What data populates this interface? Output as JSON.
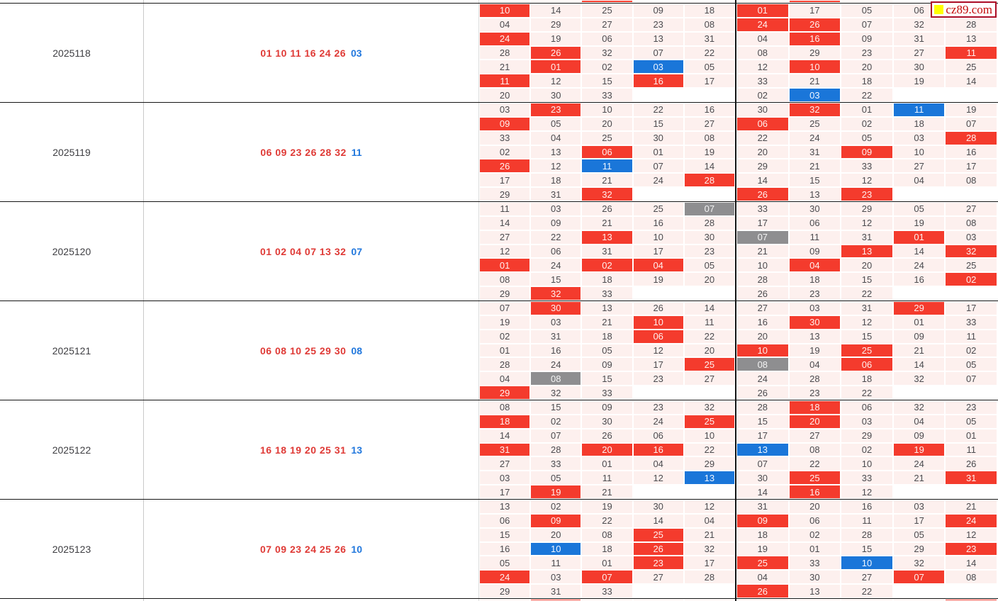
{
  "colors": {
    "red": "#f43b2d",
    "blue": "#1a76d9",
    "gray": "#8e8e90",
    "cell_bg": "#fdf0ee",
    "win_red": "#df3a36",
    "win_blue": "#2278dd"
  },
  "watermark": {
    "text": "cz89.com"
  },
  "slivers": {
    "top": "--ree-r-ee",
    "bottom": "-r-------r"
  },
  "periods": [
    {
      "id": "2025118",
      "reds": "01 10 11 16 24 26",
      "blue": "03",
      "left": {
        "values": [
          [
            "10",
            "14",
            "25",
            "09",
            "18"
          ],
          [
            "04",
            "29",
            "27",
            "23",
            "08"
          ],
          [
            "24",
            "19",
            "06",
            "13",
            "31"
          ],
          [
            "28",
            "26",
            "32",
            "07",
            "22"
          ],
          [
            "21",
            "01",
            "02",
            "03",
            "05"
          ],
          [
            "11",
            "12",
            "15",
            "16",
            "17"
          ],
          [
            "20",
            "30",
            "33",
            "",
            ""
          ]
        ],
        "states": [
          "r----",
          "-----",
          "r----",
          "-r---",
          "-r-b-",
          "r--r-",
          "---ee"
        ]
      },
      "right": {
        "values": [
          [
            "01",
            "17",
            "05",
            "06",
            ""
          ],
          [
            "24",
            "26",
            "07",
            "32",
            "28"
          ],
          [
            "04",
            "16",
            "09",
            "31",
            "13"
          ],
          [
            "08",
            "29",
            "23",
            "27",
            "11"
          ],
          [
            "12",
            "10",
            "20",
            "30",
            "25"
          ],
          [
            "33",
            "21",
            "18",
            "19",
            "14"
          ],
          [
            "02",
            "03",
            "22",
            "",
            ""
          ]
        ],
        "states": [
          "r----",
          "rr---",
          "-r---",
          "----r",
          "-r---",
          "-----",
          "-b-ee"
        ]
      }
    },
    {
      "id": "2025119",
      "reds": "06 09 23 26 28 32",
      "blue": "11",
      "left": {
        "values": [
          [
            "03",
            "23",
            "10",
            "22",
            "16"
          ],
          [
            "09",
            "05",
            "20",
            "15",
            "27"
          ],
          [
            "33",
            "04",
            "25",
            "30",
            "08"
          ],
          [
            "02",
            "13",
            "06",
            "01",
            "19"
          ],
          [
            "26",
            "12",
            "11",
            "07",
            "14"
          ],
          [
            "17",
            "18",
            "21",
            "24",
            "28"
          ],
          [
            "29",
            "31",
            "32",
            "",
            ""
          ]
        ],
        "states": [
          "-r---",
          "r----",
          "-----",
          "--r--",
          "r-b--",
          "----r",
          "--ree"
        ]
      },
      "right": {
        "values": [
          [
            "30",
            "32",
            "01",
            "11",
            "19"
          ],
          [
            "06",
            "25",
            "02",
            "18",
            "07"
          ],
          [
            "22",
            "24",
            "05",
            "03",
            "28"
          ],
          [
            "20",
            "31",
            "09",
            "10",
            "16"
          ],
          [
            "29",
            "21",
            "33",
            "27",
            "17"
          ],
          [
            "14",
            "15",
            "12",
            "04",
            "08"
          ],
          [
            "26",
            "13",
            "23",
            "",
            ""
          ]
        ],
        "states": [
          "-r-b-",
          "r----",
          "----r",
          "--r--",
          "-----",
          "-----",
          "r-ree"
        ]
      }
    },
    {
      "id": "2025120",
      "reds": "01 02 04 07 13 32",
      "blue": "07",
      "left": {
        "values": [
          [
            "11",
            "03",
            "26",
            "25",
            "07"
          ],
          [
            "14",
            "09",
            "21",
            "16",
            "28"
          ],
          [
            "27",
            "22",
            "13",
            "10",
            "30"
          ],
          [
            "12",
            "06",
            "31",
            "17",
            "23"
          ],
          [
            "01",
            "24",
            "02",
            "04",
            "05"
          ],
          [
            "08",
            "15",
            "18",
            "19",
            "20"
          ],
          [
            "29",
            "32",
            "33",
            "",
            ""
          ]
        ],
        "states": [
          "----g",
          "-----",
          "--r--",
          "-----",
          "r-rr-",
          "-----",
          "-r-ee"
        ]
      },
      "right": {
        "values": [
          [
            "33",
            "30",
            "29",
            "05",
            "27"
          ],
          [
            "17",
            "06",
            "12",
            "19",
            "08"
          ],
          [
            "07",
            "11",
            "31",
            "01",
            "03"
          ],
          [
            "21",
            "09",
            "13",
            "14",
            "32"
          ],
          [
            "10",
            "04",
            "20",
            "24",
            "25"
          ],
          [
            "28",
            "18",
            "15",
            "16",
            "02"
          ],
          [
            "26",
            "23",
            "22",
            "",
            ""
          ]
        ],
        "states": [
          "-----",
          "-----",
          "g--r-",
          "--r-r",
          "-r---",
          "----r",
          "---ee"
        ]
      }
    },
    {
      "id": "2025121",
      "reds": "06 08 10 25 29 30",
      "blue": "08",
      "left": {
        "values": [
          [
            "07",
            "30",
            "13",
            "26",
            "14"
          ],
          [
            "19",
            "03",
            "21",
            "10",
            "11"
          ],
          [
            "02",
            "31",
            "18",
            "06",
            "22"
          ],
          [
            "01",
            "16",
            "05",
            "12",
            "20"
          ],
          [
            "28",
            "24",
            "09",
            "17",
            "25"
          ],
          [
            "04",
            "08",
            "15",
            "23",
            "27"
          ],
          [
            "29",
            "32",
            "33",
            "",
            ""
          ]
        ],
        "states": [
          "-r---",
          "---r-",
          "---r-",
          "-----",
          "----r",
          "-g---",
          "r--ee"
        ]
      },
      "right": {
        "values": [
          [
            "27",
            "03",
            "31",
            "29",
            "17"
          ],
          [
            "16",
            "30",
            "12",
            "01",
            "33"
          ],
          [
            "20",
            "13",
            "15",
            "09",
            "11"
          ],
          [
            "10",
            "19",
            "25",
            "21",
            "02"
          ],
          [
            "08",
            "04",
            "06",
            "14",
            "05"
          ],
          [
            "24",
            "28",
            "18",
            "32",
            "07"
          ],
          [
            "26",
            "23",
            "22",
            "",
            ""
          ]
        ],
        "states": [
          "---r-",
          "-r---",
          "-----",
          "r-r--",
          "g-r--",
          "-----",
          "---ee"
        ]
      }
    },
    {
      "id": "2025122",
      "reds": "16 18 19 20 25 31",
      "blue": "13",
      "left": {
        "values": [
          [
            "08",
            "15",
            "09",
            "23",
            "32"
          ],
          [
            "18",
            "02",
            "30",
            "24",
            "25"
          ],
          [
            "14",
            "07",
            "26",
            "06",
            "10"
          ],
          [
            "31",
            "28",
            "20",
            "16",
            "22"
          ],
          [
            "27",
            "33",
            "01",
            "04",
            "29"
          ],
          [
            "03",
            "05",
            "11",
            "12",
            "13"
          ],
          [
            "17",
            "19",
            "21",
            "",
            ""
          ]
        ],
        "states": [
          "-----",
          "r---r",
          "-----",
          "r-rr-",
          "-----",
          "----b",
          "-r-ee"
        ]
      },
      "right": {
        "values": [
          [
            "28",
            "18",
            "06",
            "32",
            "23"
          ],
          [
            "15",
            "20",
            "03",
            "04",
            "05"
          ],
          [
            "17",
            "27",
            "29",
            "09",
            "01"
          ],
          [
            "13",
            "08",
            "02",
            "19",
            "11"
          ],
          [
            "07",
            "22",
            "10",
            "24",
            "26"
          ],
          [
            "30",
            "25",
            "33",
            "21",
            "31"
          ],
          [
            "14",
            "16",
            "12",
            "",
            ""
          ]
        ],
        "states": [
          "-r---",
          "-r---",
          "-----",
          "b--r-",
          "-----",
          "-r--r",
          "-r-ee"
        ]
      }
    },
    {
      "id": "2025123",
      "reds": "07 09 23 24 25 26",
      "blue": "10",
      "left": {
        "values": [
          [
            "13",
            "02",
            "19",
            "30",
            "12"
          ],
          [
            "06",
            "09",
            "22",
            "14",
            "04"
          ],
          [
            "15",
            "20",
            "08",
            "25",
            "21"
          ],
          [
            "16",
            "10",
            "18",
            "26",
            "32"
          ],
          [
            "05",
            "11",
            "01",
            "23",
            "17"
          ],
          [
            "24",
            "03",
            "07",
            "27",
            "28"
          ],
          [
            "29",
            "31",
            "33",
            "",
            ""
          ]
        ],
        "states": [
          "-----",
          "-r---",
          "---r-",
          "-b-r-",
          "---r-",
          "r-r--",
          "---ee"
        ]
      },
      "right": {
        "values": [
          [
            "31",
            "20",
            "16",
            "03",
            "21"
          ],
          [
            "09",
            "06",
            "11",
            "17",
            "24"
          ],
          [
            "18",
            "02",
            "28",
            "05",
            "12"
          ],
          [
            "19",
            "01",
            "15",
            "29",
            "23"
          ],
          [
            "25",
            "33",
            "10",
            "32",
            "14"
          ],
          [
            "04",
            "30",
            "27",
            "07",
            "08"
          ],
          [
            "26",
            "13",
            "22",
            "",
            ""
          ]
        ],
        "states": [
          "-----",
          "r---r",
          "-----",
          "----r",
          "r-b--",
          "---r-",
          "r--ee"
        ]
      }
    }
  ]
}
